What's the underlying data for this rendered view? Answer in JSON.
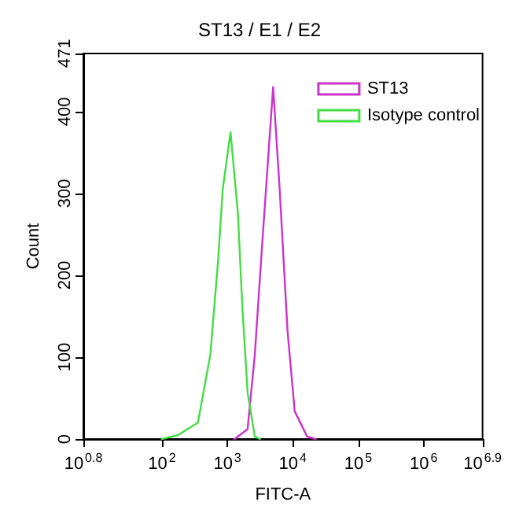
{
  "chart_data": {
    "type": "line",
    "title": "ST13 / E1 / E2",
    "xlabel": "FITC-A",
    "ylabel": "Count",
    "log": "x",
    "xlim": [
      6.31,
      7943282
    ],
    "xticks": [
      {
        "value": 6.31,
        "label": "10$^{0.8}$"
      },
      {
        "value": 100,
        "label": "10$^{2}$"
      },
      {
        "value": 1000,
        "label": "10$^{3}$"
      },
      {
        "value": 10000,
        "label": "10$^{4}$"
      },
      {
        "value": 100000,
        "label": "10$^{5}$"
      },
      {
        "value": 1000000,
        "label": "10$^{6}$"
      },
      {
        "value": 7943282,
        "label": "10$^{6.9}$"
      }
    ],
    "ylim": [
      0,
      471
    ],
    "yticks": [
      0,
      100,
      200,
      300,
      400,
      471
    ],
    "grid": false,
    "legend": "top right",
    "marker": "none",
    "line_style": "solid",
    "series": [
      {
        "name": "ST13",
        "color": "#cc33cc",
        "x": [
          1290,
          2040,
          2630,
          3470,
          4370,
          5010,
          6310,
          8320,
          10700,
          16600,
          22400
        ],
        "values": [
          0,
          12,
          103,
          247,
          362,
          430,
          305,
          132,
          34,
          3,
          0
        ]
      },
      {
        "name": "Isotype control",
        "color": "#44dd44",
        "x": [
          100,
          178,
          355,
          550,
          724,
          851,
          1120,
          1450,
          1700,
          2040,
          2630,
          3160
        ],
        "values": [
          0,
          5,
          20,
          103,
          219,
          305,
          375,
          276,
          160,
          57,
          3,
          0
        ]
      }
    ]
  }
}
